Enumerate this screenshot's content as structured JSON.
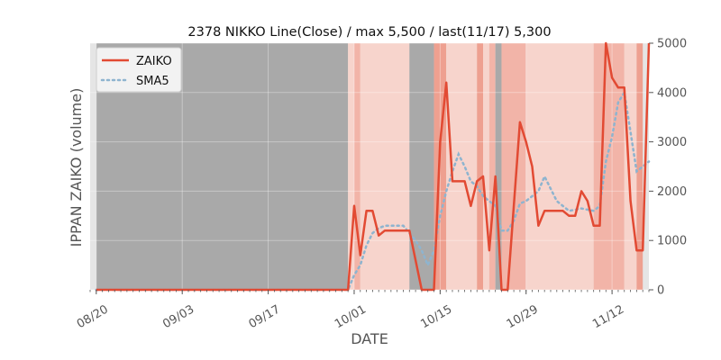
{
  "chart_data": {
    "type": "line",
    "title": "2378 NIKKO Line(Close) / max 5,500 / last(11/17) 5,300",
    "xlabel": "DATE",
    "ylabel": "IPPAN ZAIKO (volume)",
    "ylim": [
      0,
      5000
    ],
    "y_ticks": [
      0,
      1000,
      2000,
      3000,
      4000,
      5000
    ],
    "y_tick_labels": [
      "0",
      "1000",
      "2000",
      "3000",
      "4000",
      "5000"
    ],
    "x_ticks": [
      "2020-08-20",
      "2020-09-03",
      "2020-09-17",
      "2020-10-01",
      "2020-10-15",
      "2020-10-29",
      "2020-11-12"
    ],
    "x_tick_labels": [
      "08/20",
      "09/03",
      "09/17",
      "10/01",
      "10/15",
      "10/29",
      "11/12"
    ],
    "xlim": [
      "2020-08-19",
      "2020-11-18"
    ],
    "grid": true,
    "legend_position": "upper-left",
    "colors": {
      "zaiko": "#e24a33",
      "sma5": "#8eb4cf",
      "axes_bg": "#e5e5e5",
      "band_dark": "#a9a9a9",
      "band_light": "#f7d4cc",
      "band_mid": "#f2b4a8",
      "band_strong": "#eea090"
    },
    "bands": [
      {
        "start": "2020-08-20",
        "end": "2020-09-30",
        "level": "dark"
      },
      {
        "start": "2020-09-30",
        "end": "2020-10-01",
        "level": "light"
      },
      {
        "start": "2020-10-01",
        "end": "2020-10-02",
        "level": "mid"
      },
      {
        "start": "2020-10-02",
        "end": "2020-10-10",
        "level": "light"
      },
      {
        "start": "2020-10-10",
        "end": "2020-10-14",
        "level": "dark"
      },
      {
        "start": "2020-10-14",
        "end": "2020-10-16",
        "level": "strong"
      },
      {
        "start": "2020-10-16",
        "end": "2020-10-21",
        "level": "light"
      },
      {
        "start": "2020-10-21",
        "end": "2020-10-22",
        "level": "strong"
      },
      {
        "start": "2020-10-22",
        "end": "2020-10-23",
        "level": "light"
      },
      {
        "start": "2020-10-23",
        "end": "2020-10-24",
        "level": "mid"
      },
      {
        "start": "2020-10-24",
        "end": "2020-10-25",
        "level": "dark"
      },
      {
        "start": "2020-10-25",
        "end": "2020-10-29",
        "level": "mid"
      },
      {
        "start": "2020-10-29",
        "end": "2020-11-09",
        "level": "light"
      },
      {
        "start": "2020-11-09",
        "end": "2020-11-14",
        "level": "mid"
      },
      {
        "start": "2020-11-14",
        "end": "2020-11-16",
        "level": "light"
      },
      {
        "start": "2020-11-16",
        "end": "2020-11-17",
        "level": "strong"
      }
    ],
    "series": [
      {
        "name": "ZAIKO",
        "style": "solid",
        "points": [
          [
            "2020-08-20",
            0
          ],
          [
            "2020-09-01",
            0
          ],
          [
            "2020-09-15",
            0
          ],
          [
            "2020-09-30",
            0
          ],
          [
            "2020-10-01",
            1700
          ],
          [
            "2020-10-02",
            700
          ],
          [
            "2020-10-03",
            1600
          ],
          [
            "2020-10-04",
            1600
          ],
          [
            "2020-10-05",
            1100
          ],
          [
            "2020-10-06",
            1200
          ],
          [
            "2020-10-09",
            1200
          ],
          [
            "2020-10-10",
            1200
          ],
          [
            "2020-10-11",
            600
          ],
          [
            "2020-10-12",
            0
          ],
          [
            "2020-10-14",
            0
          ],
          [
            "2020-10-15",
            3000
          ],
          [
            "2020-10-16",
            4200
          ],
          [
            "2020-10-17",
            2200
          ],
          [
            "2020-10-19",
            2200
          ],
          [
            "2020-10-20",
            1700
          ],
          [
            "2020-10-21",
            2200
          ],
          [
            "2020-10-22",
            2300
          ],
          [
            "2020-10-23",
            800
          ],
          [
            "2020-10-24",
            2300
          ],
          [
            "2020-10-25",
            0
          ],
          [
            "2020-10-26",
            0
          ],
          [
            "2020-10-28",
            3400
          ],
          [
            "2020-10-29",
            3000
          ],
          [
            "2020-10-30",
            2500
          ],
          [
            "2020-10-31",
            1300
          ],
          [
            "2020-11-01",
            1600
          ],
          [
            "2020-11-04",
            1600
          ],
          [
            "2020-11-05",
            1500
          ],
          [
            "2020-11-06",
            1500
          ],
          [
            "2020-11-07",
            2000
          ],
          [
            "2020-11-08",
            1800
          ],
          [
            "2020-11-09",
            1300
          ],
          [
            "2020-11-10",
            1300
          ],
          [
            "2020-11-11",
            5000
          ],
          [
            "2020-11-12",
            4300
          ],
          [
            "2020-11-13",
            4100
          ],
          [
            "2020-11-14",
            4100
          ],
          [
            "2020-11-15",
            1800
          ],
          [
            "2020-11-16",
            800
          ],
          [
            "2020-11-17",
            800
          ],
          [
            "2020-11-18",
            5000
          ]
        ]
      },
      {
        "name": "SMA5",
        "style": "dotted",
        "points": [
          [
            "2020-08-20",
            0
          ],
          [
            "2020-09-30",
            0
          ],
          [
            "2020-10-01",
            300
          ],
          [
            "2020-10-02",
            500
          ],
          [
            "2020-10-03",
            900
          ],
          [
            "2020-10-04",
            1150
          ],
          [
            "2020-10-05",
            1250
          ],
          [
            "2020-10-06",
            1300
          ],
          [
            "2020-10-09",
            1300
          ],
          [
            "2020-10-10",
            1150
          ],
          [
            "2020-10-11",
            1000
          ],
          [
            "2020-10-12",
            800
          ],
          [
            "2020-10-13",
            500
          ],
          [
            "2020-10-14",
            800
          ],
          [
            "2020-10-15",
            1500
          ],
          [
            "2020-10-16",
            2000
          ],
          [
            "2020-10-17",
            2400
          ],
          [
            "2020-10-18",
            2750
          ],
          [
            "2020-10-19",
            2500
          ],
          [
            "2020-10-20",
            2200
          ],
          [
            "2020-10-21",
            2100
          ],
          [
            "2020-10-22",
            1900
          ],
          [
            "2020-10-23",
            1800
          ],
          [
            "2020-10-24",
            1700
          ],
          [
            "2020-10-25",
            1200
          ],
          [
            "2020-10-26",
            1200
          ],
          [
            "2020-10-27",
            1400
          ],
          [
            "2020-10-28",
            1750
          ],
          [
            "2020-10-29",
            1800
          ],
          [
            "2020-10-31",
            2000
          ],
          [
            "2020-11-01",
            2300
          ],
          [
            "2020-11-03",
            1800
          ],
          [
            "2020-11-05",
            1600
          ],
          [
            "2020-11-07",
            1650
          ],
          [
            "2020-11-09",
            1600
          ],
          [
            "2020-11-10",
            1700
          ],
          [
            "2020-11-11",
            2600
          ],
          [
            "2020-11-12",
            3100
          ],
          [
            "2020-11-13",
            3800
          ],
          [
            "2020-11-14",
            4000
          ],
          [
            "2020-11-15",
            3200
          ],
          [
            "2020-11-16",
            2400
          ],
          [
            "2020-11-17",
            2500
          ],
          [
            "2020-11-18",
            2600
          ]
        ]
      }
    ]
  }
}
